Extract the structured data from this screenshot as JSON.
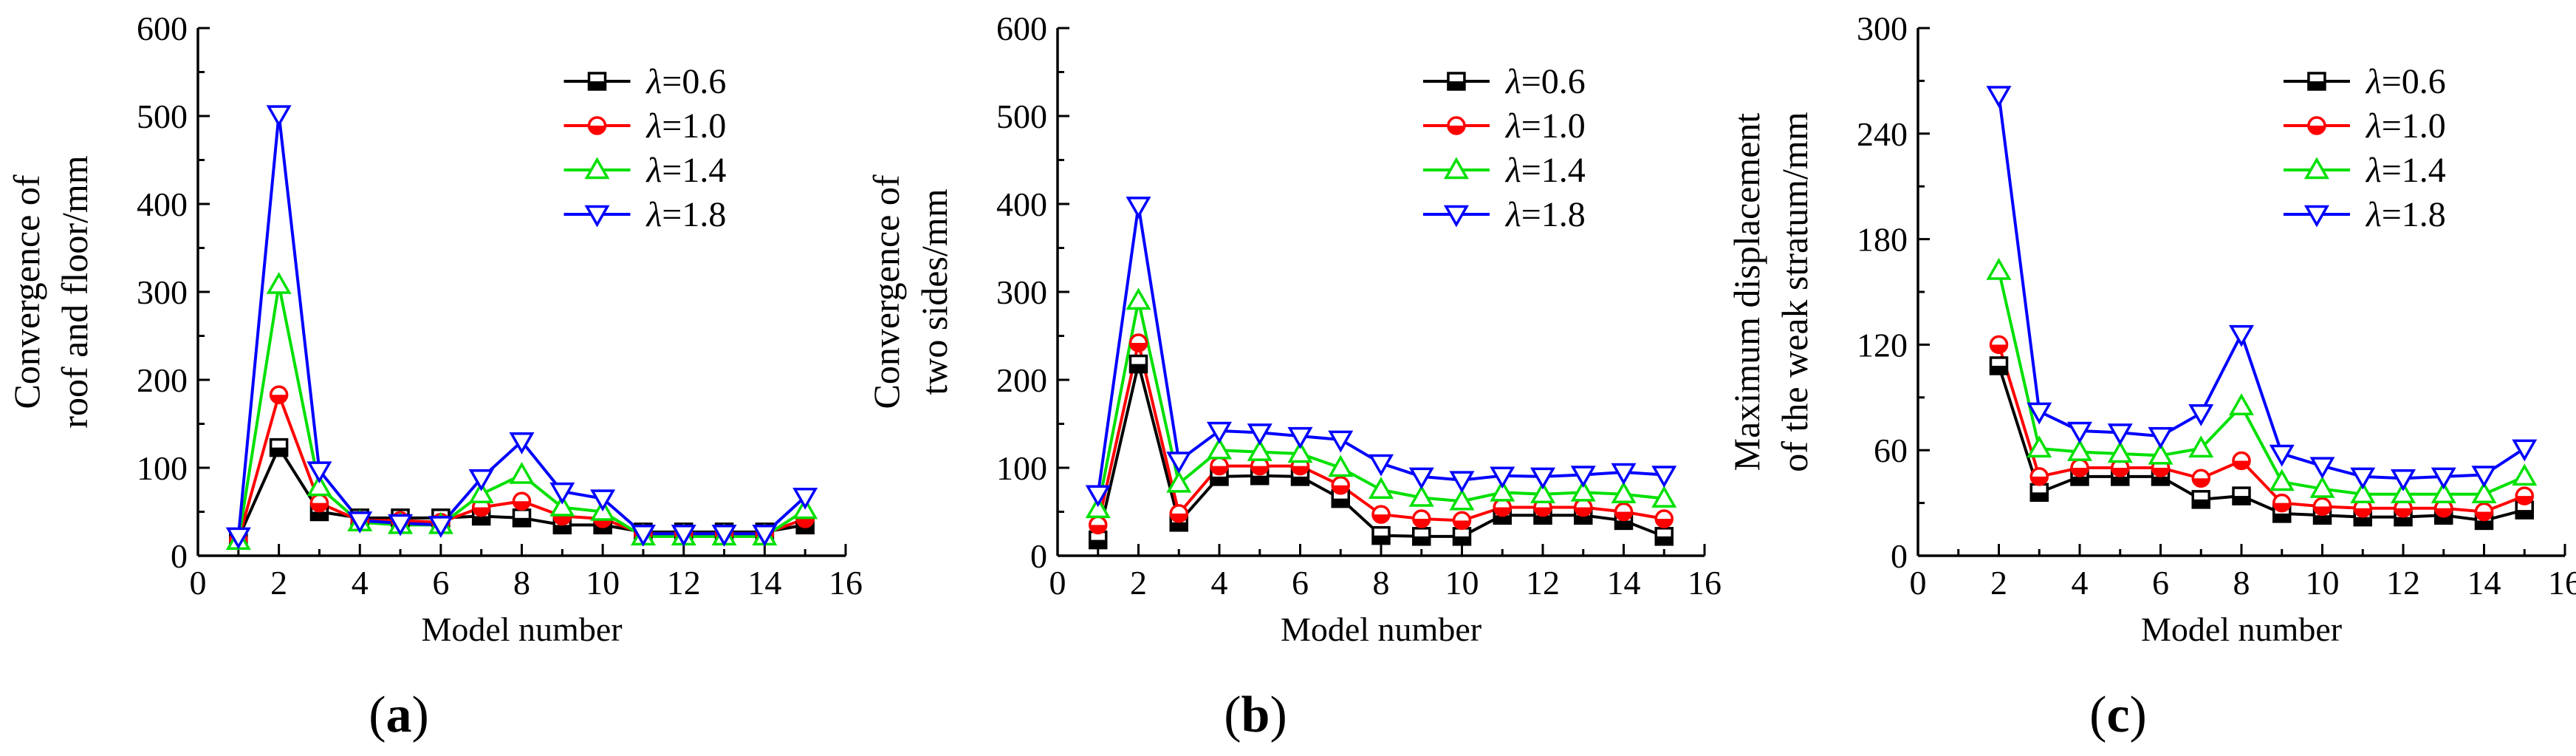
{
  "chart_data": [
    {
      "type": "line",
      "panel_label": "a",
      "xlabel": "Model number",
      "ylabel": [
        "Convergence of",
        "roof and floor/mm"
      ],
      "xlim": [
        0,
        16
      ],
      "ylim": [
        0,
        600
      ],
      "xticks": [
        0,
        2,
        4,
        6,
        8,
        10,
        12,
        14,
        16
      ],
      "yticks": [
        0,
        100,
        200,
        300,
        400,
        500,
        600
      ],
      "legend_position": "top-right",
      "x": [
        1,
        2,
        3,
        4,
        5,
        6,
        7,
        8,
        9,
        10,
        11,
        12,
        13,
        14,
        15
      ],
      "series": [
        {
          "name": "λ=0.6",
          "lambda_value": "=0.6",
          "color": "#000000",
          "marker": "square",
          "values": [
            20,
            123,
            50,
            43,
            43,
            43,
            45,
            43,
            35,
            35,
            27,
            27,
            27,
            27,
            35
          ]
        },
        {
          "name": "λ=1.0",
          "lambda_value": "=1.0",
          "color": "#ff0000",
          "marker": "circle",
          "values": [
            18,
            183,
            60,
            40,
            40,
            38,
            55,
            62,
            45,
            42,
            25,
            25,
            25,
            25,
            42
          ]
        },
        {
          "name": "λ=1.4",
          "lambda_value": "=1.4",
          "color": "#00e000",
          "marker": "triangle-up",
          "values": [
            17,
            308,
            78,
            38,
            35,
            35,
            70,
            92,
            55,
            50,
            22,
            22,
            22,
            22,
            52
          ]
        },
        {
          "name": "λ=1.8",
          "lambda_value": "=1.8",
          "color": "#0000ff",
          "marker": "triangle-down",
          "values": [
            22,
            502,
            97,
            40,
            37,
            35,
            88,
            130,
            73,
            65,
            25,
            25,
            25,
            25,
            67
          ]
        }
      ]
    },
    {
      "type": "line",
      "panel_label": "b",
      "xlabel": "Model number",
      "ylabel": [
        "Convergence of",
        "two sides/mm"
      ],
      "xlim": [
        0,
        16
      ],
      "ylim": [
        0,
        600
      ],
      "xticks": [
        0,
        2,
        4,
        6,
        8,
        10,
        12,
        14,
        16
      ],
      "yticks": [
        0,
        100,
        200,
        300,
        400,
        500,
        600
      ],
      "legend_position": "top-right",
      "x": [
        1,
        2,
        3,
        4,
        5,
        6,
        7,
        8,
        9,
        10,
        11,
        12,
        13,
        14,
        15
      ],
      "series": [
        {
          "name": "λ=0.6",
          "lambda_value": "=0.6",
          "color": "#000000",
          "marker": "square",
          "values": [
            18,
            218,
            38,
            90,
            91,
            90,
            65,
            23,
            22,
            22,
            46,
            46,
            46,
            40,
            22
          ]
        },
        {
          "name": "λ=1.0",
          "lambda_value": "=1.0",
          "color": "#ff0000",
          "marker": "circle",
          "values": [
            35,
            242,
            48,
            102,
            102,
            102,
            80,
            47,
            42,
            40,
            55,
            55,
            55,
            50,
            42
          ]
        },
        {
          "name": "λ=1.4",
          "lambda_value": "=1.4",
          "color": "#00e000",
          "marker": "triangle-up",
          "values": [
            53,
            290,
            82,
            120,
            118,
            116,
            100,
            75,
            66,
            62,
            72,
            70,
            72,
            70,
            65
          ]
        },
        {
          "name": "λ=1.8",
          "lambda_value": "=1.8",
          "color": "#0000ff",
          "marker": "triangle-down",
          "values": [
            70,
            398,
            108,
            142,
            140,
            136,
            132,
            105,
            90,
            86,
            91,
            90,
            92,
            95,
            92
          ]
        }
      ]
    },
    {
      "type": "line",
      "panel_label": "c",
      "xlabel": "Model number",
      "ylabel": [
        "Maximum displacement",
        "of the weak stratum/mm"
      ],
      "xlim": [
        0,
        16
      ],
      "ylim": [
        0,
        300
      ],
      "xticks": [
        0,
        2,
        4,
        6,
        8,
        10,
        12,
        14,
        16
      ],
      "yticks": [
        0,
        60,
        120,
        180,
        240,
        300
      ],
      "legend_position": "top-right",
      "x": [
        2,
        3,
        4,
        5,
        6,
        7,
        8,
        9,
        10,
        11,
        12,
        13,
        14,
        15
      ],
      "series": [
        {
          "name": "λ=0.6",
          "lambda_value": "=0.6",
          "color": "#000000",
          "marker": "square",
          "values": [
            108,
            36,
            45,
            45,
            45,
            32,
            34,
            24,
            23,
            22,
            22,
            23,
            20,
            26
          ]
        },
        {
          "name": "λ=1.0",
          "lambda_value": "=1.0",
          "color": "#ff0000",
          "marker": "circle",
          "values": [
            120,
            45,
            50,
            50,
            50,
            44,
            54,
            30,
            28,
            27,
            27,
            27,
            25,
            34
          ]
        },
        {
          "name": "λ=1.4",
          "lambda_value": "=1.4",
          "color": "#00e000",
          "marker": "triangle-up",
          "values": [
            162,
            61,
            59,
            58,
            57,
            61,
            85,
            42,
            38,
            35,
            35,
            35,
            35,
            45
          ]
        },
        {
          "name": "λ=1.8",
          "lambda_value": "=1.8",
          "color": "#0000ff",
          "marker": "triangle-down",
          "values": [
            262,
            82,
            71,
            70,
            68,
            81,
            126,
            58,
            51,
            45,
            44,
            45,
            46,
            61
          ]
        }
      ]
    }
  ]
}
